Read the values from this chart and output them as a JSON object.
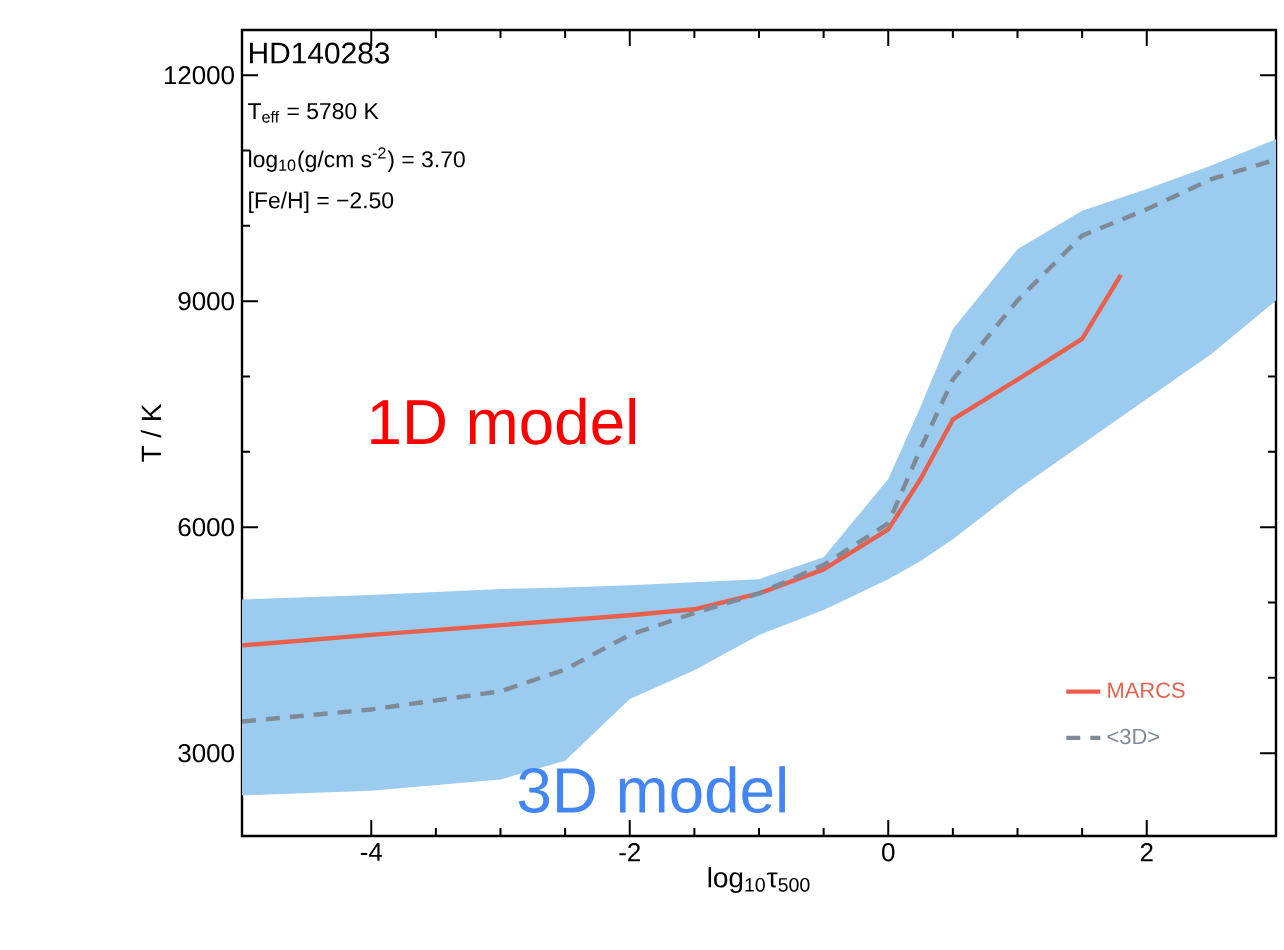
{
  "chart_data": {
    "type": "line",
    "xlabel": "log$_{10}$τ$_{500}$",
    "ylabel": "T / K",
    "xlim": [
      -5,
      3
    ],
    "ylim": [
      1900,
      12600
    ],
    "xticks": [
      -4,
      -2,
      0,
      2
    ],
    "yticks": [
      3000,
      6000,
      9000,
      12000
    ],
    "legend": "bottom right",
    "grid": false,
    "annotations": [
      "HD140283",
      "T$_{eff}$ = 5780 K",
      "log$_{10}$(g/cm s$^{-2}$) = 3.70",
      "[Fe/H] = −2.50",
      "1D model",
      "3D model"
    ],
    "series": [
      {
        "name": "MARCS",
        "color": "#e8604c",
        "line_style": "solid",
        "x": [
          -5,
          -4,
          -3,
          -2,
          -1.5,
          -1,
          -0.5,
          0,
          0.25,
          0.5,
          1,
          1.5,
          1.8
        ],
        "values": [
          4430,
          4570,
          4700,
          4830,
          4910,
          5120,
          5440,
          5970,
          6640,
          7430,
          7960,
          8500,
          9350
        ]
      },
      {
        "name": "<3D>",
        "color": "#7f8a99",
        "line_style": "dashed",
        "x": [
          -5,
          -4,
          -3,
          -2.5,
          -2,
          -1.5,
          -1,
          -0.5,
          0,
          0.25,
          0.5,
          1,
          1.5,
          2,
          2.5,
          3
        ],
        "values": [
          3420,
          3580,
          3820,
          4110,
          4570,
          4860,
          5120,
          5500,
          6050,
          7040,
          7960,
          9010,
          9870,
          10220,
          10620,
          10880
        ],
        "lower": [
          2440,
          2500,
          2650,
          2900,
          3720,
          4100,
          4570,
          4900,
          5310,
          5550,
          5840,
          6500,
          7100,
          7700,
          8300,
          9010
        ],
        "upper": [
          5040,
          5100,
          5180,
          5200,
          5230,
          5270,
          5310,
          5600,
          6640,
          7600,
          8630,
          9690,
          10200,
          10490,
          10800,
          11150
        ]
      }
    ]
  }
}
